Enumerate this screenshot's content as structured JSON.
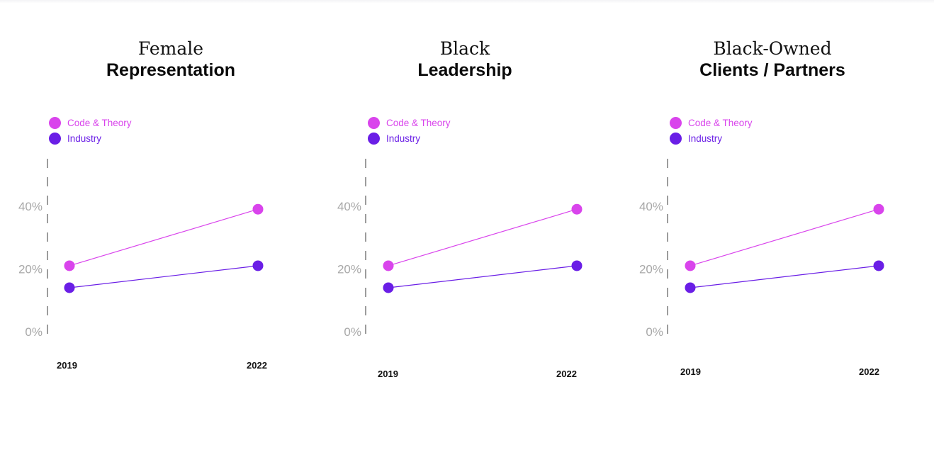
{
  "colors": {
    "code_theory": "#d944ec",
    "industry": "#6a1ee6",
    "axis": "#9c9c9c",
    "tick_text": "#a8a8a8"
  },
  "chart_data": [
    {
      "type": "line",
      "title_line1": "Female",
      "title_line2": "Representation",
      "x": [
        "2019",
        "2022"
      ],
      "series": [
        {
          "name": "Code & Theory",
          "values": [
            21,
            39
          ]
        },
        {
          "name": "Industry",
          "values": [
            14,
            21
          ]
        }
      ],
      "yticks": [
        "40%",
        "20%",
        "0%"
      ],
      "ylim": [
        0,
        50
      ],
      "grid": false,
      "legend": "top-left"
    },
    {
      "type": "line",
      "title_line1": "Black",
      "title_line2": "Leadership",
      "x": [
        "2019",
        "2022"
      ],
      "series": [
        {
          "name": "Code & Theory",
          "values": [
            21,
            39
          ]
        },
        {
          "name": "Industry",
          "values": [
            14,
            21
          ]
        }
      ],
      "yticks": [
        "40%",
        "20%",
        "0%"
      ],
      "ylim": [
        0,
        50
      ],
      "grid": false,
      "legend": "top-left"
    },
    {
      "type": "line",
      "title_line1": "Black-Owned",
      "title_line2": "Clients / Partners",
      "x": [
        "2019",
        "2022"
      ],
      "series": [
        {
          "name": "Code & Theory",
          "values": [
            21,
            39
          ]
        },
        {
          "name": "Industry",
          "values": [
            14,
            21
          ]
        }
      ],
      "yticks": [
        "40%",
        "20%",
        "0%"
      ],
      "ylim": [
        0,
        50
      ],
      "grid": false,
      "legend": "top-left"
    }
  ]
}
